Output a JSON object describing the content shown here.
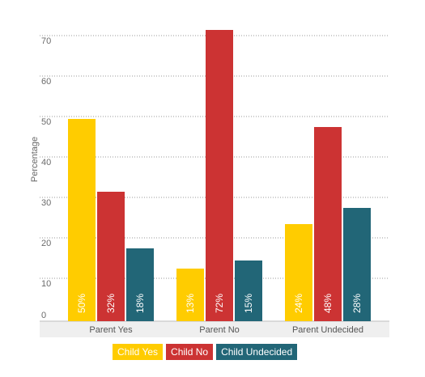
{
  "chart_data": {
    "type": "bar",
    "ylabel": "Percentage",
    "xlabel": "",
    "ylim": [
      0,
      73
    ],
    "yticks": [
      0,
      10,
      20,
      30,
      40,
      50,
      60,
      70
    ],
    "grid": true,
    "legend_position": "bottom",
    "categories": [
      "Parent Yes",
      "Parent No",
      "Parent Undecided"
    ],
    "series": [
      {
        "name": "Child Yes",
        "color": "#FFCC00",
        "values": [
          50,
          13,
          24
        ],
        "labels": [
          "50%",
          "13%",
          "24%"
        ]
      },
      {
        "name": "Child No",
        "color": "#CC3333",
        "values": [
          32,
          72,
          48
        ],
        "labels": [
          "32%",
          "72%",
          "48%"
        ]
      },
      {
        "name": "Child Undecided",
        "color": "#226677",
        "values": [
          18,
          15,
          28
        ],
        "labels": [
          "18%",
          "15%",
          "28%"
        ]
      }
    ]
  }
}
